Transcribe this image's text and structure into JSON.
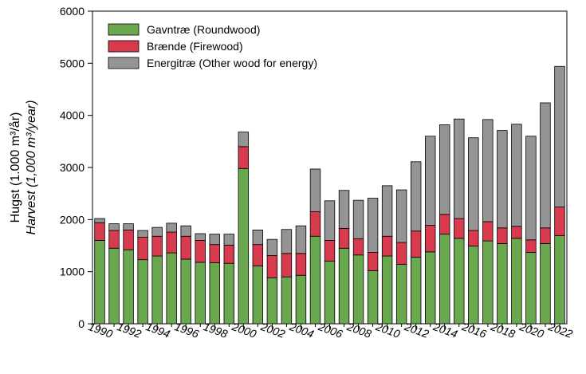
{
  "chart_data": {
    "type": "bar",
    "stacked": true,
    "ylabel": "Hugst (1.000 m³/år)",
    "ylabel_en": "Harvest (1,000 m³/year)",
    "ylim": [
      0,
      6000
    ],
    "yticks": [
      0,
      1000,
      2000,
      3000,
      4000,
      5000,
      6000
    ],
    "categories": [
      1990,
      1991,
      1992,
      1993,
      1994,
      1995,
      1996,
      1997,
      1998,
      1999,
      2000,
      2001,
      2002,
      2003,
      2004,
      2005,
      2006,
      2007,
      2008,
      2009,
      2010,
      2011,
      2012,
      2013,
      2014,
      2015,
      2016,
      2017,
      2018,
      2019,
      2020,
      2021,
      2022
    ],
    "xtick_labels": [
      "1990",
      "1992",
      "1994",
      "1996",
      "1998",
      "2000",
      "2002",
      "2004",
      "2006",
      "2008",
      "2010",
      "2012",
      "2014",
      "2016",
      "2018",
      "2020",
      "2022"
    ],
    "legend_position": "top-left",
    "series": [
      {
        "name": "Gavntræ (Roundwood)",
        "color": "#6aa84f",
        "values": [
          1600,
          1450,
          1420,
          1230,
          1300,
          1360,
          1240,
          1180,
          1170,
          1160,
          2980,
          1110,
          880,
          900,
          930,
          1680,
          1200,
          1450,
          1320,
          1020,
          1300,
          1140,
          1280,
          1380,
          1720,
          1640,
          1490,
          1590,
          1540,
          1640,
          1370,
          1540,
          1690
        ]
      },
      {
        "name": "Brænde (Firewood)",
        "color": "#d83a4e",
        "values": [
          340,
          340,
          380,
          430,
          380,
          400,
          440,
          420,
          350,
          350,
          420,
          410,
          430,
          450,
          420,
          470,
          400,
          380,
          310,
          350,
          380,
          420,
          500,
          510,
          380,
          380,
          300,
          370,
          300,
          230,
          240,
          300,
          550
        ]
      },
      {
        "name": "Energitræ (Other wood for energy)",
        "color": "#949494",
        "values": [
          80,
          130,
          120,
          130,
          170,
          170,
          200,
          130,
          200,
          210,
          280,
          280,
          310,
          460,
          530,
          820,
          760,
          730,
          740,
          1040,
          970,
          1010,
          1330,
          1710,
          1720,
          1910,
          1780,
          1960,
          1870,
          1960,
          1990,
          2400,
          2700
        ]
      }
    ]
  }
}
